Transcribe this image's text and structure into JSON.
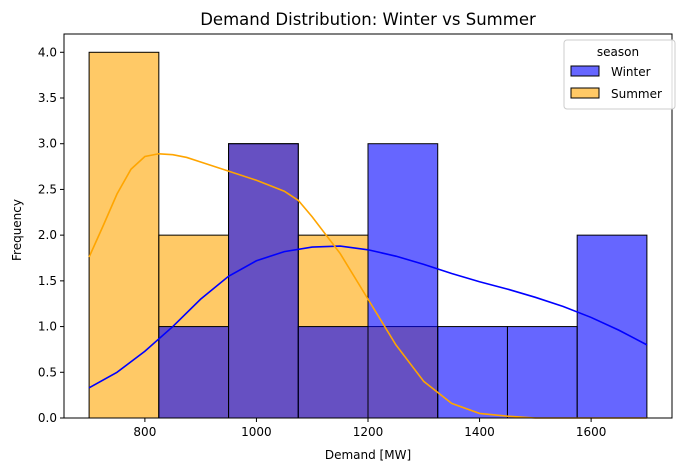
{
  "chart_data": {
    "type": "bar",
    "title": "Demand Distribution: Winter vs Summer",
    "xlabel": "Demand [MW]",
    "ylabel": "Frequency",
    "xlim": [
      655,
      1745
    ],
    "ylim": [
      0,
      4.2
    ],
    "xticks": [
      800,
      1000,
      1200,
      1400,
      1600
    ],
    "yticks": [
      0.0,
      0.5,
      1.0,
      1.5,
      2.0,
      2.5,
      3.0,
      3.5,
      4.0
    ],
    "legend": {
      "title": "season",
      "placement": "top-right"
    },
    "bin_edges": [
      700,
      825,
      950,
      1075,
      1200,
      1325,
      1450,
      1575,
      1700
    ],
    "series": [
      {
        "name": "Winter",
        "color": "#0000ff",
        "fill_alpha": 0.6,
        "counts": [
          0,
          1,
          3,
          1,
          3,
          1,
          1,
          2
        ],
        "kde": {
          "x": [
            700,
            750,
            800,
            850,
            900,
            950,
            1000,
            1050,
            1100,
            1150,
            1200,
            1250,
            1300,
            1350,
            1400,
            1450,
            1500,
            1550,
            1600,
            1650,
            1700
          ],
          "y": [
            0.33,
            0.5,
            0.73,
            1.0,
            1.3,
            1.55,
            1.72,
            1.82,
            1.87,
            1.88,
            1.84,
            1.77,
            1.68,
            1.58,
            1.49,
            1.41,
            1.32,
            1.22,
            1.1,
            0.96,
            0.8
          ]
        }
      },
      {
        "name": "Summer",
        "color": "#ffa500",
        "fill_alpha": 0.6,
        "counts": [
          4,
          2,
          3,
          2,
          1,
          0,
          0,
          0
        ],
        "kde": {
          "x": [
            700,
            725,
            750,
            775,
            800,
            825,
            850,
            875,
            900,
            950,
            1000,
            1050,
            1075,
            1100,
            1150,
            1200,
            1250,
            1300,
            1350,
            1400,
            1450,
            1500,
            1550,
            1600,
            1650,
            1700
          ],
          "y": [
            1.76,
            2.1,
            2.45,
            2.72,
            2.86,
            2.89,
            2.88,
            2.85,
            2.8,
            2.7,
            2.6,
            2.48,
            2.38,
            2.2,
            1.8,
            1.3,
            0.8,
            0.4,
            0.16,
            0.05,
            0.02,
            0.0,
            0.0,
            0.0,
            0.0,
            0.0
          ]
        }
      }
    ],
    "overlap_color": "#6b4ac8"
  }
}
